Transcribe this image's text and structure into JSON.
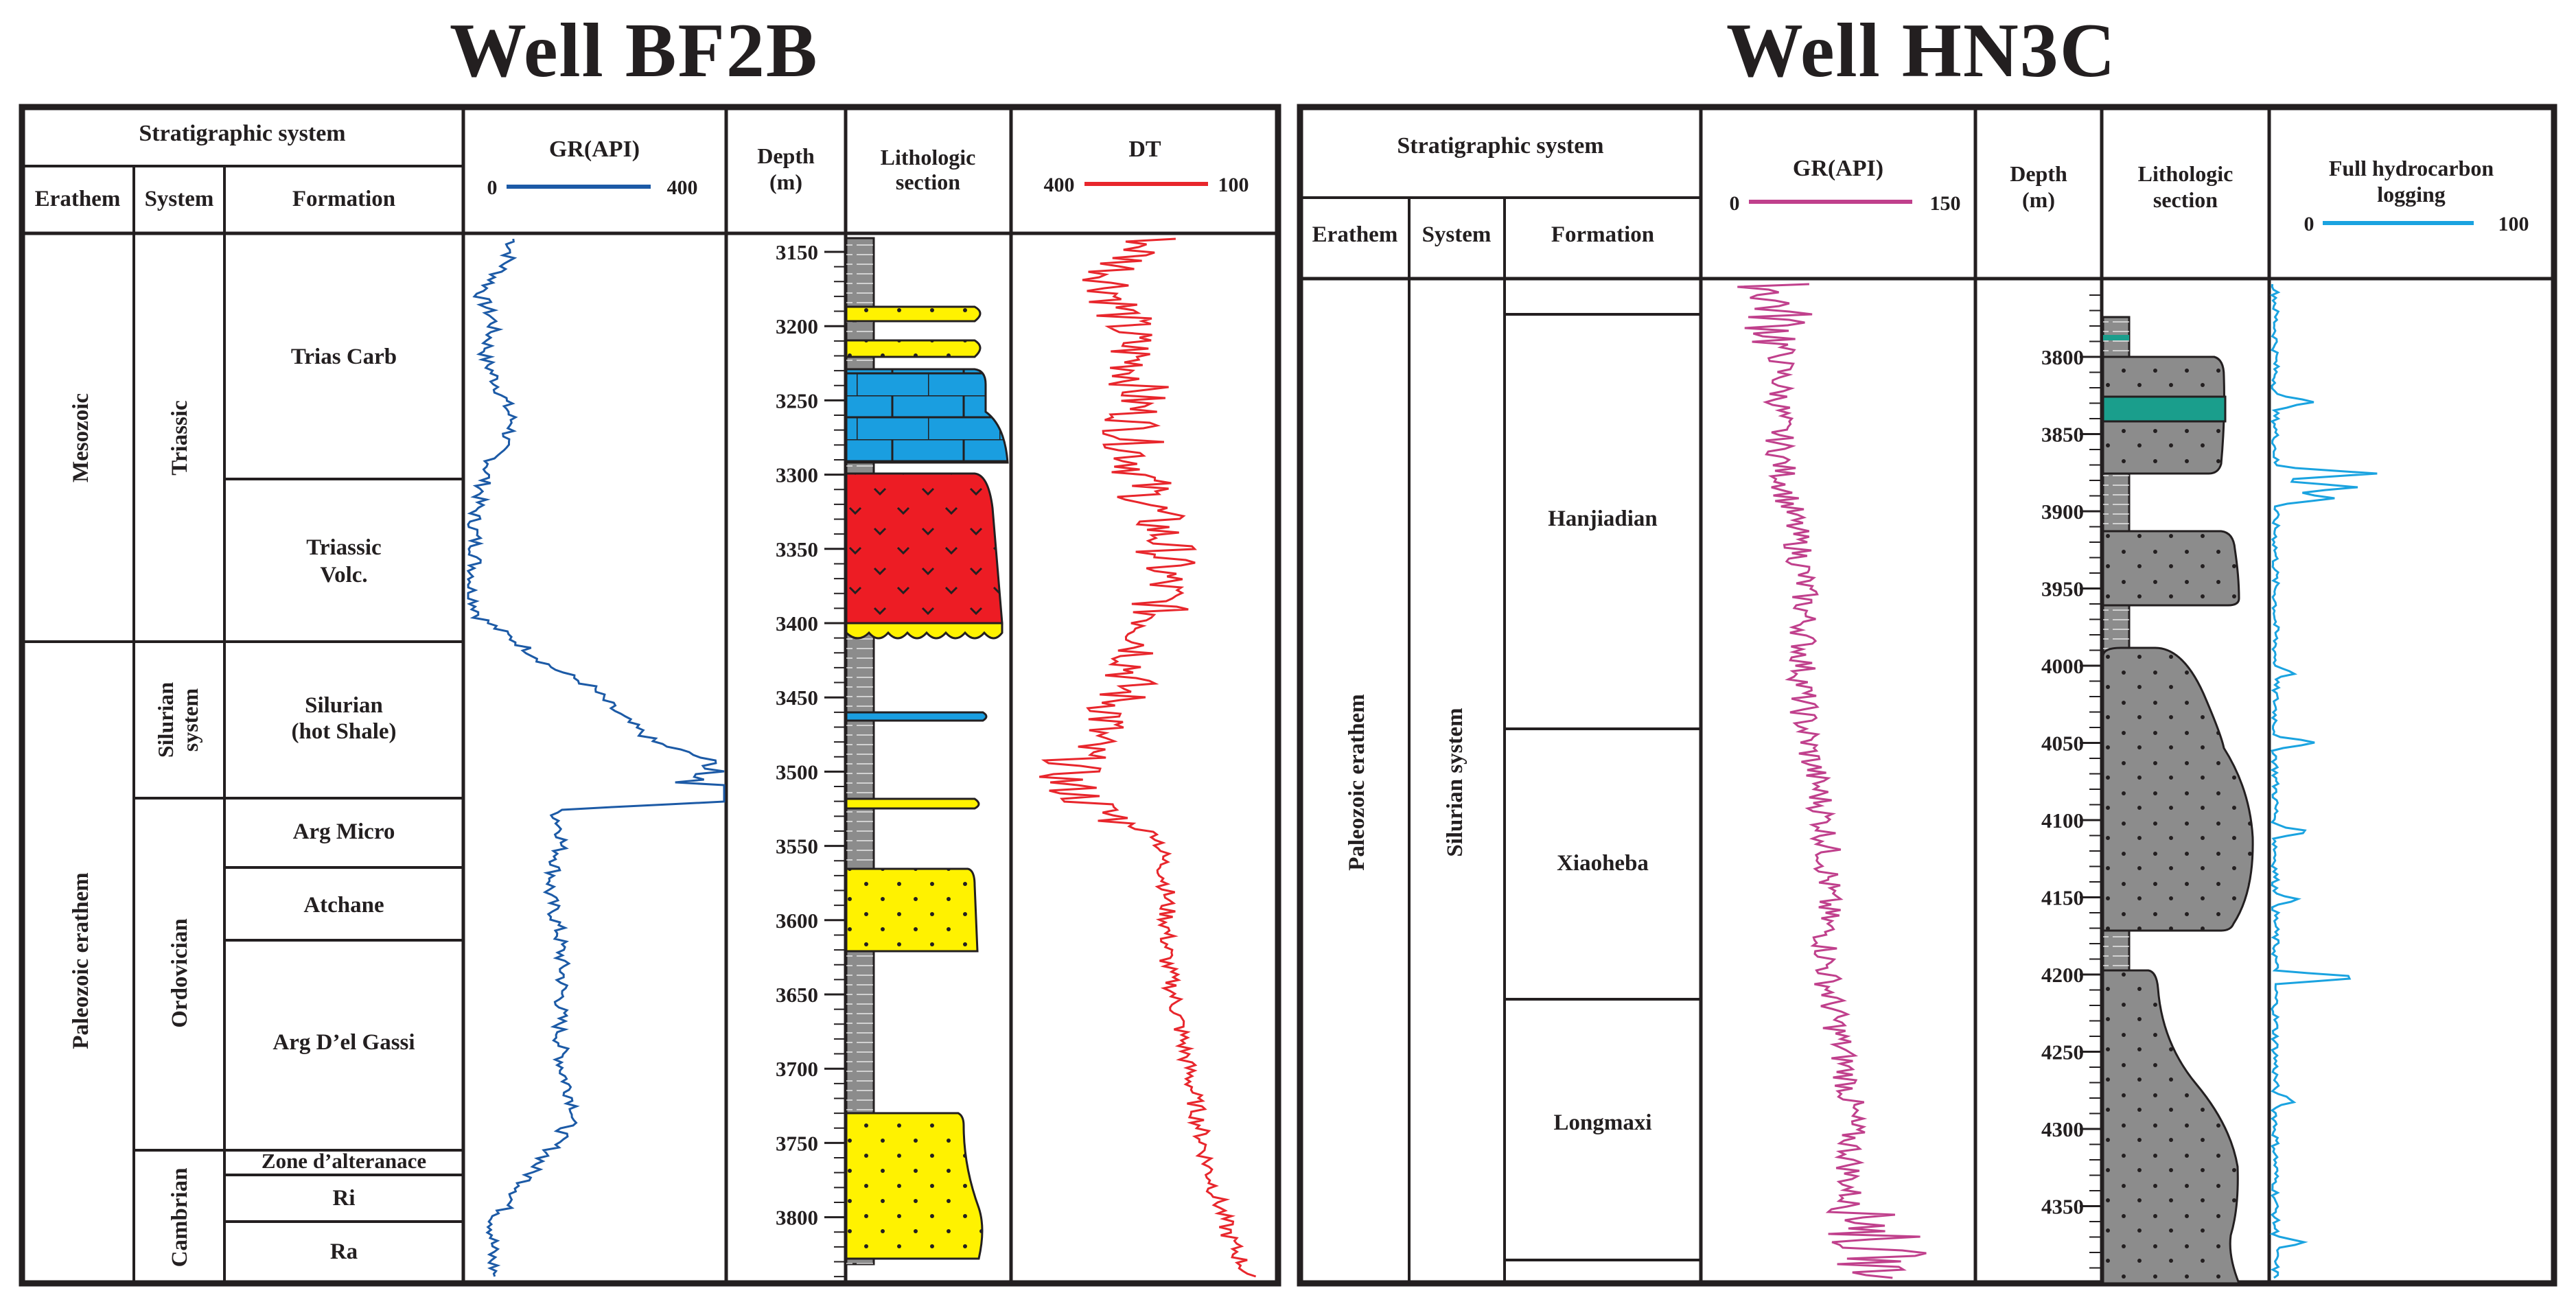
{
  "wells": {
    "bf2b": {
      "title": "Well  BF2B",
      "headers": {
        "strat": "Stratigraphic system",
        "erathem": "Erathem",
        "system": "System",
        "formation": "Formation",
        "gr": "GR(API)",
        "gr_min": "0",
        "gr_max": "400",
        "depth_line1": "Depth",
        "depth_line2": "(m)",
        "litho_line1": "Lithologic",
        "litho_line2": "section",
        "dt": "DT",
        "dt_left": "400",
        "dt_right": "100"
      },
      "erathems": [
        {
          "label": "Mesozoic"
        },
        {
          "label": "Paleozoic erathem"
        }
      ],
      "systems": [
        {
          "label": "Triassic"
        },
        {
          "label_line1": "Silurian",
          "label_line2": "system"
        },
        {
          "label": "Ordovician"
        },
        {
          "label": "Cambrian"
        }
      ],
      "formations": [
        {
          "line1": "Trias Carb"
        },
        {
          "line1": "Triassic",
          "line2": "Volc."
        },
        {
          "line1": "Silurian",
          "line2": "(hot Shale)"
        },
        {
          "line1": "Arg Micro"
        },
        {
          "line1": "Atchane"
        },
        {
          "line1": "Arg D’el Gassi"
        },
        {
          "line1": "Zone d’alteranace"
        },
        {
          "line1": "Ri"
        },
        {
          "line1": "Ra"
        }
      ],
      "depth_ticks": [
        "3150",
        "3200",
        "3250",
        "3300",
        "3350",
        "3400",
        "3450",
        "3500",
        "3550",
        "3600",
        "3650",
        "3700",
        "3750",
        "3800"
      ],
      "colors": {
        "gr": "#1c5aa6",
        "dt": "#e8262c",
        "sand": "#fff200",
        "lime": "#1a9ee0",
        "volc": "#ed1c24",
        "shale": "#8c8c8c"
      }
    },
    "hn3c": {
      "title": "Well  HN3C",
      "headers": {
        "strat": "Stratigraphic system",
        "erathem": "Erathem",
        "system": "System",
        "formation": "Formation",
        "gr": "GR(API)",
        "gr_min": "0",
        "gr_max": "150",
        "depth_line1": "Depth",
        "depth_line2": "(m)",
        "litho_line1": "Lithologic",
        "litho_line2": "section",
        "hc_line1": "Full hydrocarbon",
        "hc_line2": "logging",
        "hc_min": "0",
        "hc_max": "100"
      },
      "erathems": [
        {
          "label": "Paleozoic erathem"
        }
      ],
      "systems": [
        {
          "label": "Silurian system"
        }
      ],
      "formations": [
        {
          "line1": "Hanjiadian"
        },
        {
          "line1": "Xiaoheba"
        },
        {
          "line1": "Longmaxi"
        }
      ],
      "depth_ticks": [
        "3800",
        "3850",
        "3900",
        "3950",
        "4000",
        "4050",
        "4100",
        "4150",
        "4200",
        "4250",
        "4300",
        "4350"
      ],
      "colors": {
        "gr": "#c0408c",
        "hc": "#1aa3e0",
        "sand": "#8c8c8c",
        "coal": "#1a9e8c"
      }
    }
  }
}
